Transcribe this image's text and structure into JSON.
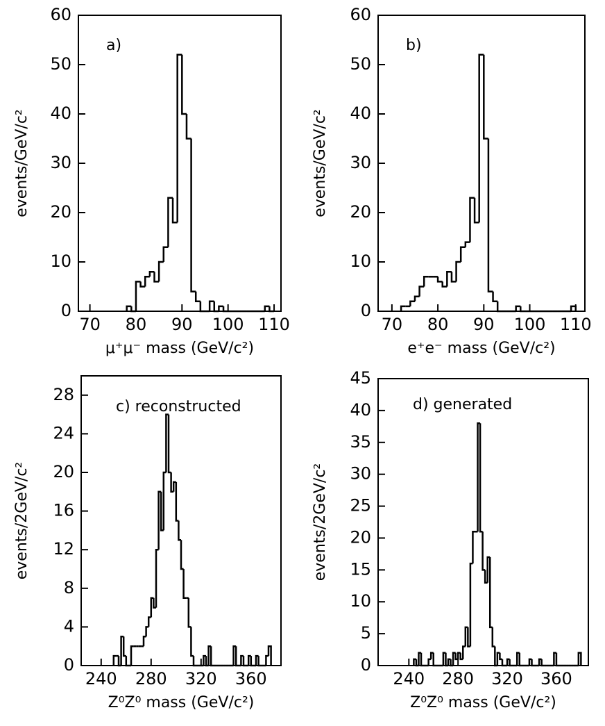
{
  "chart_data": [
    {
      "type": "histogram",
      "title": "a)",
      "x_label": "μ⁺μ⁻ mass  (GeV/c²)",
      "y_label": "events/GeV/c²",
      "xlim": [
        67.5,
        111.5
      ],
      "xticks": [
        70,
        80,
        90,
        100,
        110
      ],
      "ylim": [
        0,
        60
      ],
      "yticks": [
        0,
        10,
        20,
        30,
        40,
        50,
        60
      ],
      "bins": [
        78,
        79,
        80,
        81,
        82,
        83,
        84,
        85,
        86,
        87,
        88,
        89,
        90,
        91,
        92,
        93,
        94,
        95,
        96,
        97,
        98,
        99,
        100,
        101,
        102,
        103,
        104,
        105,
        106,
        107,
        108,
        109,
        110
      ],
      "values": [
        1,
        0,
        6,
        5,
        7,
        8,
        6,
        10,
        13,
        23,
        18,
        52,
        40,
        35,
        4,
        2,
        0,
        0,
        2,
        0,
        1,
        0,
        0,
        0,
        0,
        0,
        0,
        0,
        0,
        0,
        1,
        0
      ],
      "color": "#000000"
    },
    {
      "type": "histogram",
      "title": "b)",
      "x_label": "e⁺e⁻ mass  (GeV/c²)",
      "y_label": "events/GeV/c²",
      "xlim": [
        67,
        112
      ],
      "xticks": [
        70,
        80,
        90,
        100,
        110
      ],
      "ylim": [
        0,
        60
      ],
      "yticks": [
        0,
        10,
        20,
        30,
        40,
        50,
        60
      ],
      "bins": [
        72,
        73,
        74,
        75,
        76,
        77,
        78,
        79,
        80,
        81,
        82,
        83,
        84,
        85,
        86,
        87,
        88,
        89,
        90,
        91,
        92,
        93,
        94,
        95,
        96,
        97,
        98,
        99,
        100,
        101,
        102,
        103,
        104,
        105,
        106,
        107,
        108,
        109,
        110
      ],
      "values": [
        1,
        1,
        2,
        3,
        5,
        7,
        7,
        7,
        6,
        5,
        8,
        6,
        10,
        13,
        14,
        23,
        18,
        52,
        35,
        4,
        2,
        0,
        0,
        0,
        0,
        1,
        0,
        0,
        0,
        0,
        0,
        0,
        0,
        0,
        0,
        0,
        0,
        1
      ],
      "color": "#000000"
    },
    {
      "type": "histogram",
      "title": "c) reconstructed",
      "x_label": "Z⁰Z⁰ mass  (GeV/c²)",
      "y_label": "events/2GeV/c²",
      "xlim": [
        224,
        384
      ],
      "xticks": [
        240,
        280,
        320,
        360
      ],
      "ylim": [
        0,
        30
      ],
      "yticks": [
        0,
        4,
        8,
        12,
        16,
        20,
        24,
        28
      ],
      "bins": [
        250,
        252,
        254,
        256,
        258,
        260,
        262,
        264,
        266,
        268,
        270,
        272,
        274,
        276,
        278,
        280,
        282,
        284,
        286,
        288,
        290,
        292,
        294,
        296,
        298,
        300,
        302,
        304,
        306,
        308,
        310,
        312,
        314,
        316,
        318,
        320,
        322,
        324,
        326,
        328,
        330,
        332,
        334,
        336,
        338,
        340,
        342,
        344,
        346,
        348,
        350,
        352,
        354,
        356,
        358,
        360,
        362,
        364,
        366,
        368,
        370,
        372,
        374,
        376
      ],
      "values": [
        1,
        1,
        0,
        3,
        1,
        0,
        0,
        2,
        2,
        2,
        2,
        2,
        3,
        4,
        5,
        7,
        6,
        12,
        18,
        14,
        20,
        26,
        20,
        18,
        19,
        15,
        13,
        10,
        7,
        7,
        4,
        1,
        0,
        0,
        0,
        0,
        1,
        0,
        2,
        0,
        0,
        0,
        0,
        0,
        0,
        0,
        0,
        0,
        2,
        0,
        0,
        1,
        0,
        0,
        1,
        0,
        0,
        1,
        0,
        0,
        0,
        1,
        2
      ],
      "color": "#000000"
    },
    {
      "type": "histogram",
      "title": "d) generated",
      "x_label": "Z⁰Z⁰ mass  (GeV/c²)",
      "y_label": "events/2GeV/c²",
      "xlim": [
        215,
        386
      ],
      "xticks": [
        240,
        280,
        320,
        360
      ],
      "ylim": [
        0,
        45
      ],
      "yticks": [
        0,
        5,
        10,
        15,
        20,
        25,
        30,
        35,
        40,
        45
      ],
      "bins": [
        244,
        246,
        248,
        250,
        252,
        254,
        256,
        258,
        260,
        262,
        264,
        266,
        268,
        270,
        272,
        274,
        276,
        278,
        280,
        282,
        284,
        286,
        288,
        290,
        292,
        294,
        296,
        298,
        300,
        302,
        304,
        306,
        308,
        310,
        312,
        314,
        316,
        318,
        320,
        322,
        324,
        326,
        328,
        330,
        332,
        334,
        336,
        338,
        340,
        342,
        344,
        346,
        348,
        350,
        352,
        354,
        356,
        358,
        360,
        362,
        364,
        366,
        368,
        370,
        372,
        374,
        376,
        378,
        380
      ],
      "values": [
        1,
        0,
        2,
        0,
        0,
        0,
        1,
        2,
        0,
        0,
        0,
        0,
        2,
        0,
        1,
        0,
        2,
        1,
        2,
        1,
        3,
        6,
        3,
        16,
        21,
        21,
        38,
        21,
        15,
        13,
        17,
        6,
        3,
        0,
        2,
        1,
        0,
        0,
        1,
        0,
        0,
        0,
        2,
        0,
        0,
        0,
        0,
        1,
        0,
        0,
        0,
        1,
        0,
        0,
        0,
        0,
        0,
        2,
        0,
        0,
        0,
        0,
        0,
        0,
        0,
        0,
        0,
        2
      ],
      "color": "#000000"
    }
  ]
}
